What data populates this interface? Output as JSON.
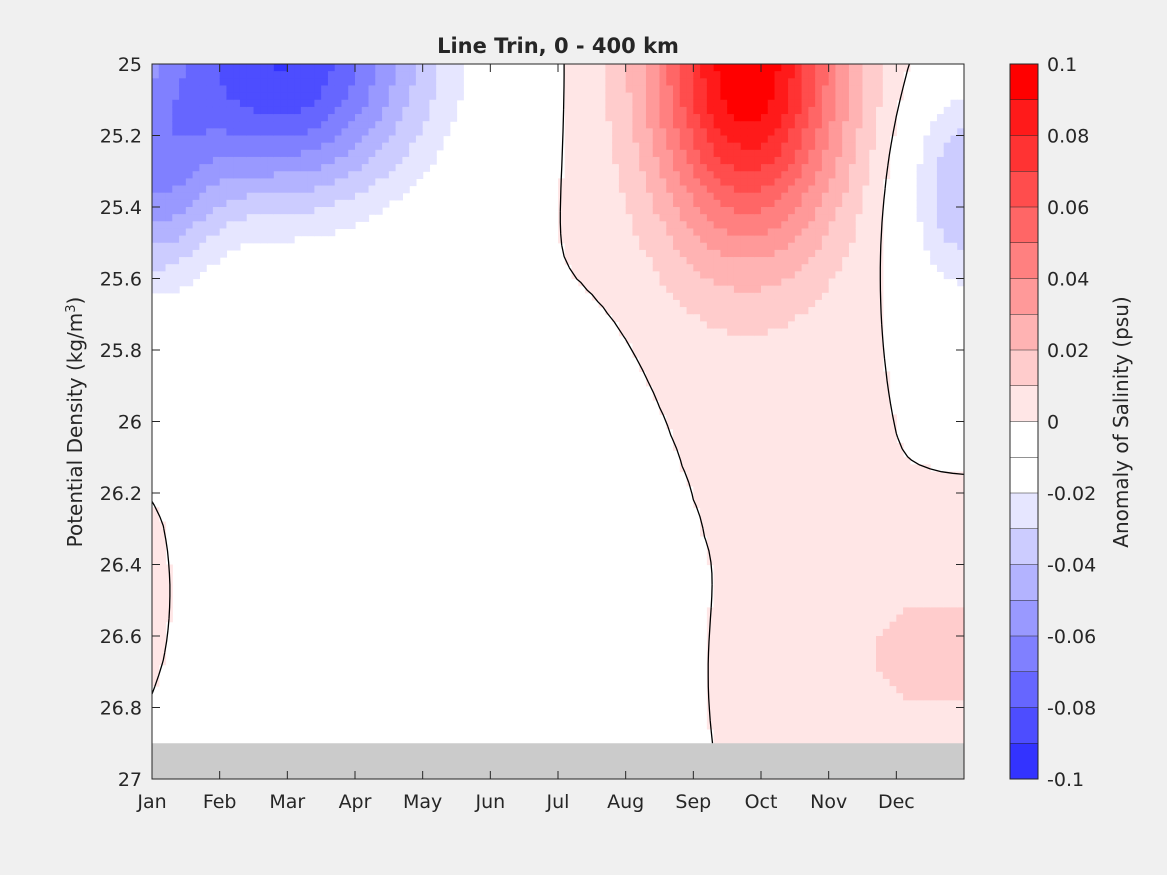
{
  "chart_data": {
    "type": "heatmap",
    "title": "Line Trin, 0 - 400 km",
    "xlabel": "",
    "ylabel": "Potential Density (kg/m³)",
    "ylabel_main": "Potential Density (kg/m",
    "ylabel_sup": "3",
    "ylabel_tail": ")",
    "xlim": [
      0,
      12
    ],
    "ylim": [
      25,
      27
    ],
    "y_reversed": true,
    "x_tick_labels": [
      "Jan",
      "Feb",
      "Mar",
      "Apr",
      "May",
      "Jun",
      "Jul",
      "Aug",
      "Sep",
      "Oct",
      "Nov",
      "Dec"
    ],
    "y_ticks": [
      25,
      25.2,
      25.4,
      25.6,
      25.8,
      26,
      26.2,
      26.4,
      26.6,
      26.8,
      27
    ],
    "y_tick_labels": [
      "25",
      "25.2",
      "25.4",
      "25.6",
      "25.8",
      "26",
      "26.2",
      "26.4",
      "26.6",
      "26.8",
      "27"
    ],
    "no_data_below": 26.9,
    "no_data_color": "#cbcbcb",
    "zero_contour_color": "#000000",
    "colorbar": {
      "label": "Anomaly of Salinity (psu)",
      "min": -0.1,
      "max": 0.1,
      "step": 0.01,
      "tick_values": [
        0.1,
        0.08,
        0.06,
        0.04,
        0.02,
        0,
        -0.02,
        -0.04,
        -0.06,
        -0.08,
        -0.1
      ],
      "tick_labels": [
        "0.1",
        "0.08",
        "0.06",
        "0.04",
        "0.02",
        "0",
        "-0.02",
        "-0.04",
        "-0.06",
        "-0.08",
        "-0.1"
      ],
      "colors_top_to_bottom": [
        "#ff0000",
        "#ff1a1a",
        "#ff3333",
        "#ff4d4d",
        "#ff6666",
        "#ff8080",
        "#ff9999",
        "#ffb3b3",
        "#ffcccc",
        "#ffe6e6",
        "#ffffff",
        "#ffffff",
        "#e6e6ff",
        "#ccccff",
        "#b3b3ff",
        "#9999ff",
        "#8080ff",
        "#6666ff",
        "#4d4dff",
        "#3333ff"
      ]
    },
    "anomaly_centers": [
      {
        "month": 1.9,
        "density": 25.0,
        "peak": -0.09,
        "spread_month": 2.2,
        "spread_density": 0.4
      },
      {
        "month": 8.8,
        "density": 25.0,
        "peak": 0.1,
        "spread_month": 1.4,
        "spread_density": 0.5
      },
      {
        "month": 12.0,
        "density": 25.35,
        "peak": -0.04,
        "spread_month": 0.9,
        "spread_density": 0.32
      },
      {
        "month": 0.0,
        "density": 25.35,
        "peak": -0.04,
        "spread_month": 0.9,
        "spread_density": 0.32
      },
      {
        "month": 6.6,
        "density": 26.4,
        "peak": -0.012,
        "spread_month": 0.7,
        "spread_density": 0.5
      },
      {
        "month": 0.4,
        "density": 26.7,
        "peak": -0.015,
        "spread_month": 0.9,
        "spread_density": 0.25
      },
      {
        "month": 11.6,
        "density": 26.65,
        "peak": 0.015,
        "spread_month": 1.4,
        "spread_density": 0.22
      },
      {
        "month": 0.0,
        "density": 26.65,
        "peak": 0.015,
        "spread_month": 0.6,
        "spread_density": 0.22
      }
    ]
  }
}
